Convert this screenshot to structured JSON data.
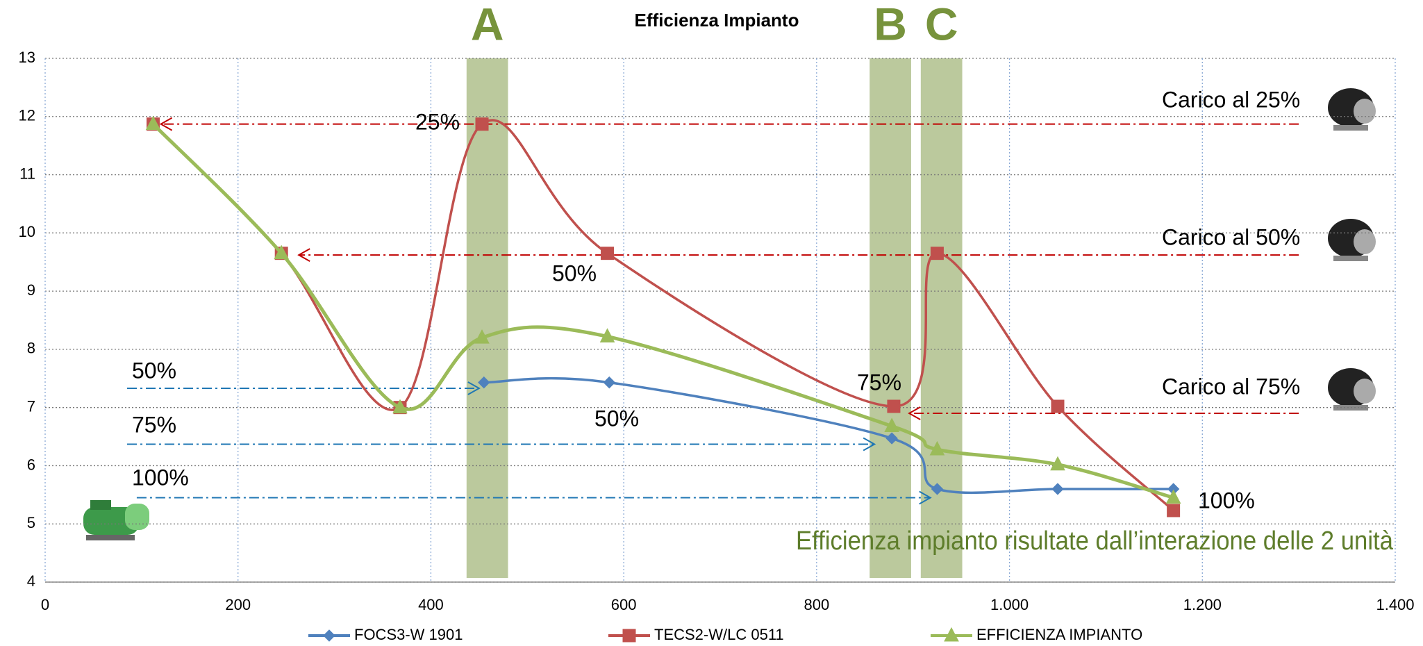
{
  "chart_data": {
    "type": "line",
    "title": "Efficienza Impianto",
    "series": [
      {
        "name": "FOCS3-W 1901",
        "color": "#4f81bd",
        "marker": "diamond",
        "x": [
          455,
          585,
          878,
          925,
          1050,
          1170
        ],
        "values": [
          7.43,
          7.43,
          6.47,
          5.6,
          5.6,
          5.6
        ]
      },
      {
        "name": "TECS2-W/LC 0511",
        "color": "#c0504d",
        "marker": "square",
        "x": [
          112,
          245,
          368,
          453,
          583,
          880,
          925,
          1050,
          1170
        ],
        "values": [
          11.87,
          9.65,
          7.0,
          11.87,
          9.65,
          7.02,
          9.65,
          7.02,
          5.23
        ]
      },
      {
        "name": "EFFICIENZA IMPIANTO",
        "color": "#9bbb59",
        "marker": "triangle",
        "x": [
          112,
          245,
          368,
          453,
          583,
          878,
          925,
          1050,
          1170
        ],
        "values": [
          11.87,
          9.65,
          7.0,
          8.2,
          8.22,
          6.68,
          6.28,
          6.02,
          5.45
        ]
      }
    ],
    "highlights": [
      {
        "label": "A",
        "x": [
          437,
          480
        ]
      },
      {
        "label": "B",
        "x": [
          855,
          898
        ]
      },
      {
        "label": "C",
        "x": [
          908,
          951
        ]
      }
    ],
    "highlight_color": "#77933c",
    "xlim": [
      0,
      1400
    ],
    "xticks": [
      0,
      200,
      400,
      600,
      800,
      {
        "value": 1000,
        "label": "1.000"
      },
      {
        "value": 1200,
        "label": "1.200"
      },
      {
        "value": 1400,
        "label": "1.400"
      }
    ],
    "ylim": [
      4,
      13
    ],
    "yticks": [
      4,
      5,
      6,
      7,
      8,
      9,
      10,
      11,
      12,
      13
    ],
    "grid": true,
    "legend": "bottom",
    "load_labels": [
      "Carico al 25%",
      "Carico al 50%",
      "Carico al 75%"
    ],
    "red_point_labels": [
      "25%",
      "50%",
      "75%"
    ],
    "blue_arrow_labels": [
      "50%",
      "75%",
      "100%"
    ],
    "point_labels": [
      "50%",
      "100%"
    ],
    "annotation": "Efficienza impianto risultate dall’interazione delle 2 unità"
  }
}
